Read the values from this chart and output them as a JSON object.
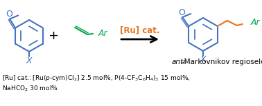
{
  "bg_color": "#ffffff",
  "blue": "#4472C4",
  "orange": "#E87722",
  "green": "#00A651",
  "black": "#000000",
  "fig_width": 3.78,
  "fig_height": 1.54,
  "dpi": 100,
  "ru_cat_label": "[Ru] cat.",
  "anti_italic": "anti",
  "anti_normal": "-Markovnikov regioselectivity",
  "footnote_line1": "[Ru] cat.: [Ru(p-cym)Cl2] 2.5 mol%, P(4-CF3C6H4)3 15 mol%,",
  "footnote_line2": "NaHCO2 30 mol%"
}
